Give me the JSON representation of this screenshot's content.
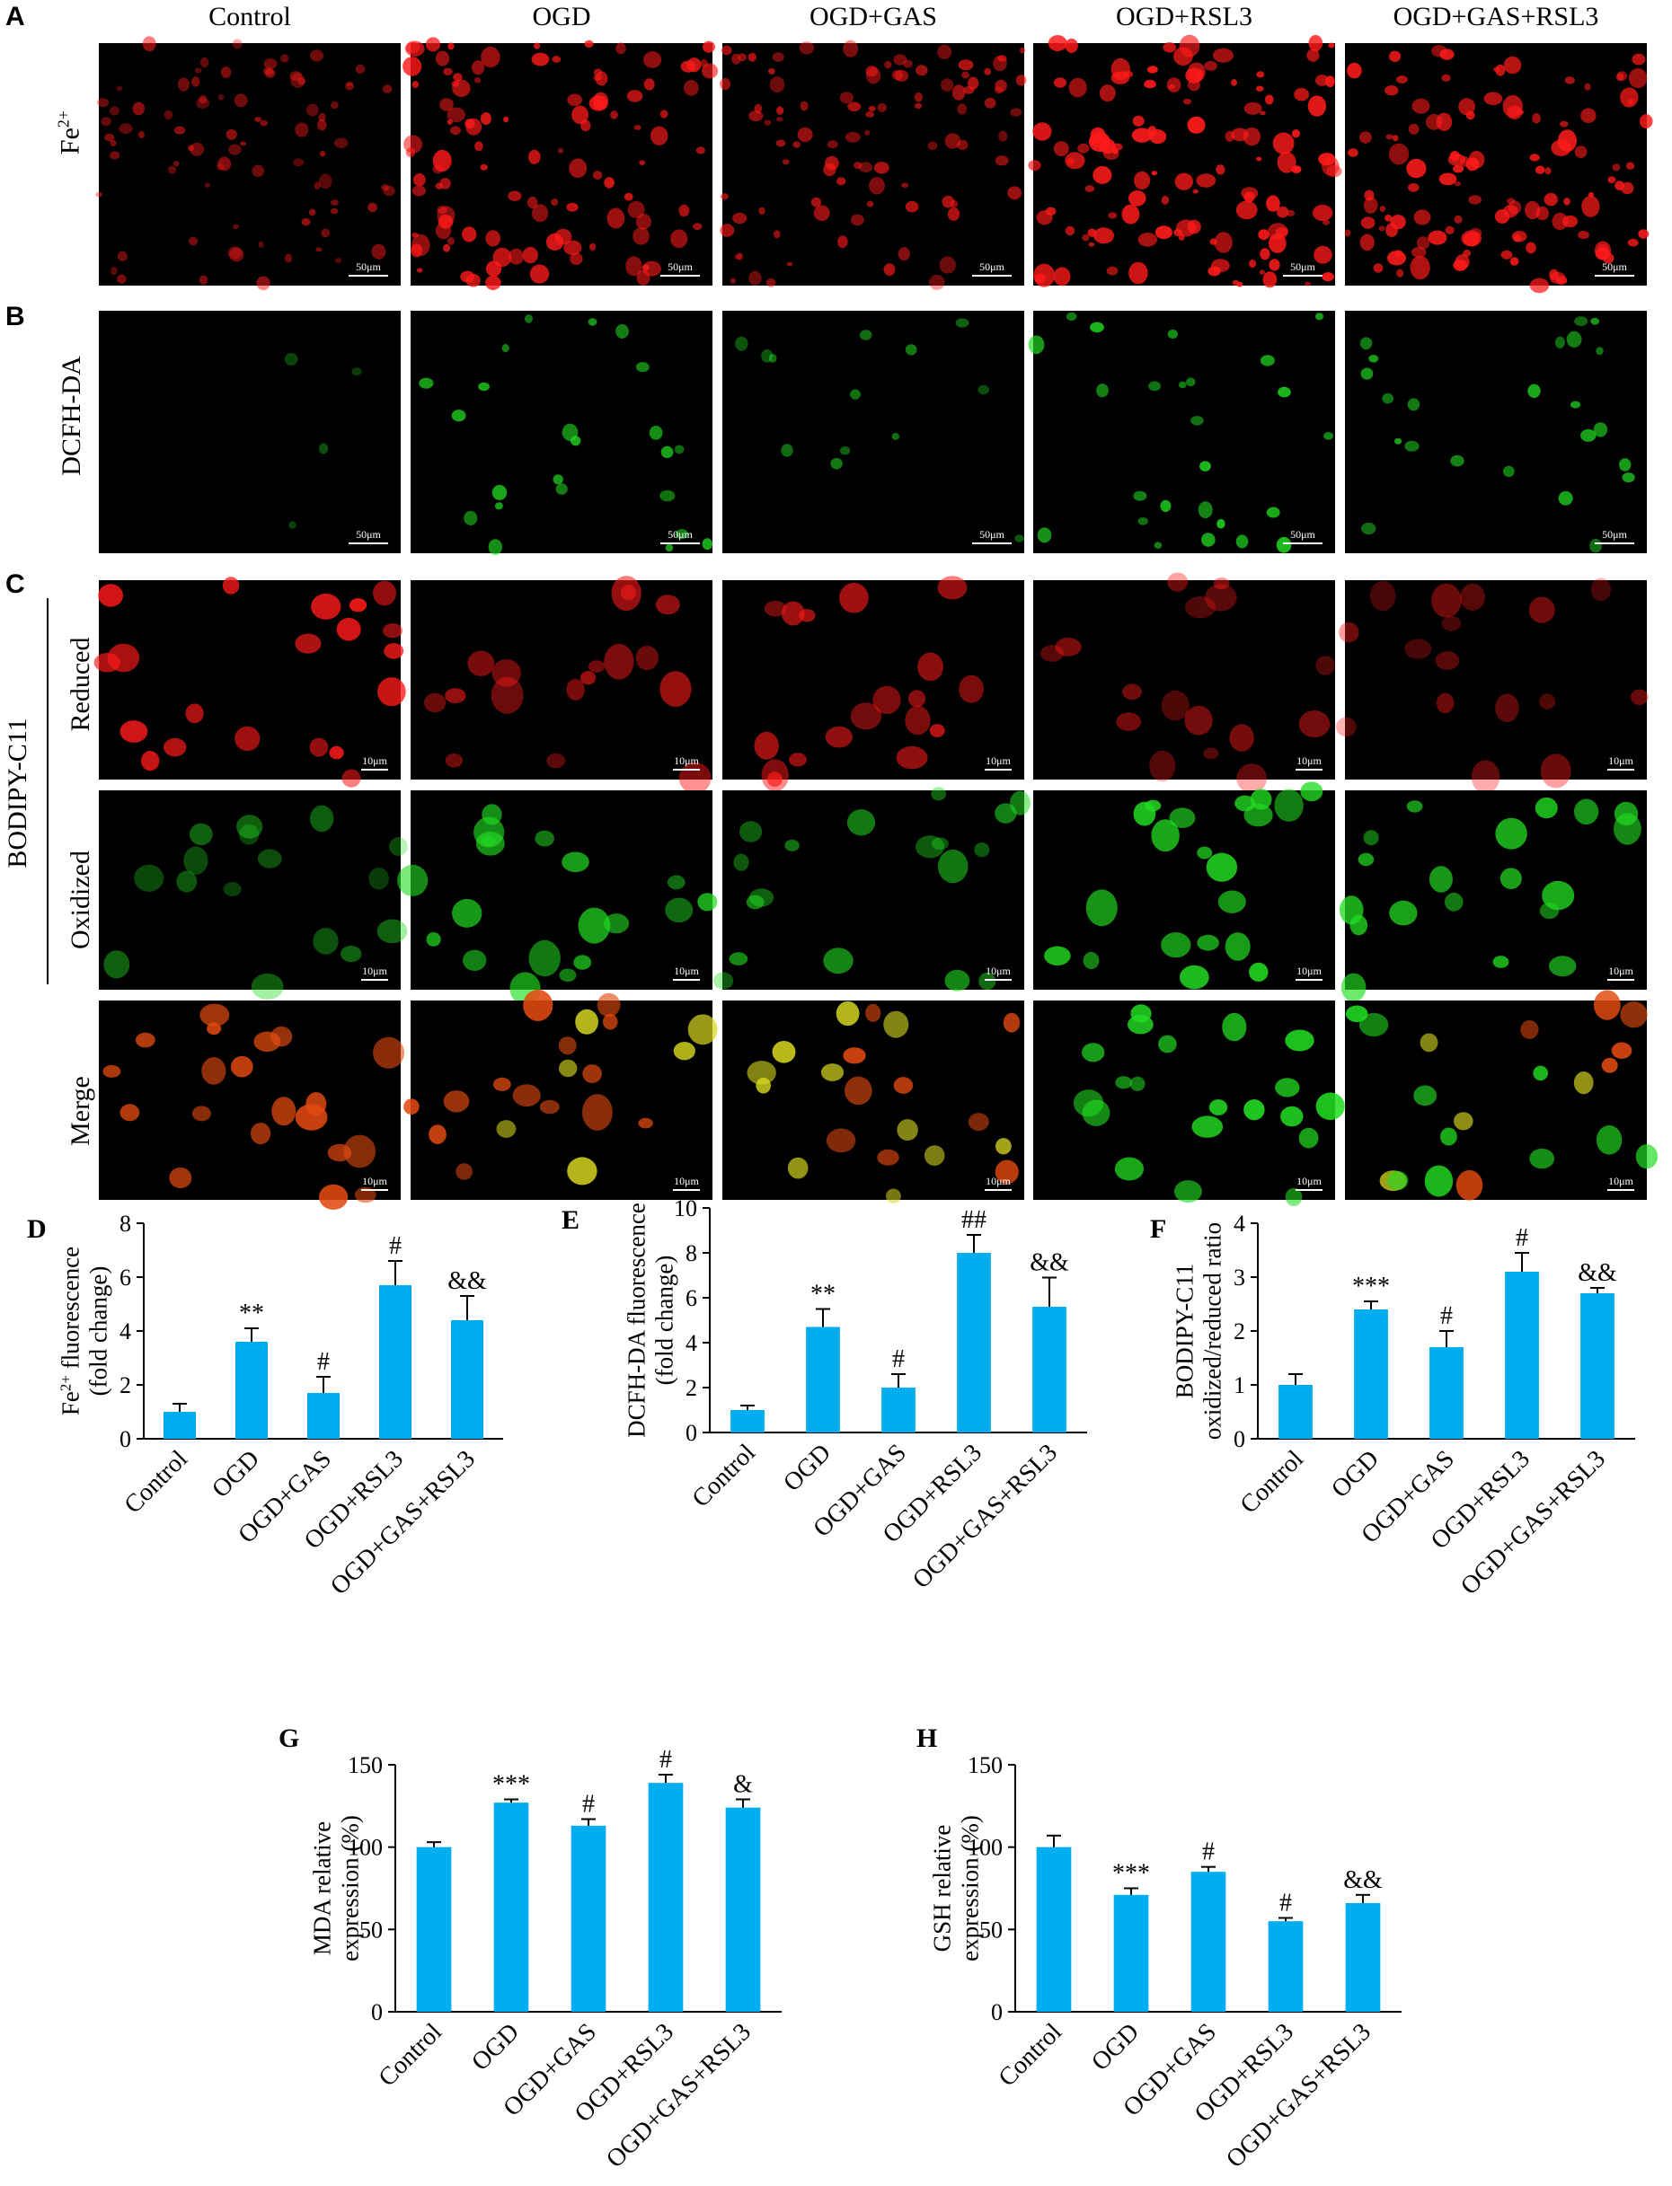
{
  "panel_letters": {
    "A": "A",
    "B": "B",
    "C": "C",
    "D": "D",
    "E": "E",
    "F": "F",
    "G": "G",
    "H": "H"
  },
  "columns": [
    "Control",
    "OGD",
    "OGD+GAS",
    "OGD+RSL3",
    "OGD+GAS+RSL3"
  ],
  "row_labels": {
    "fe": "Fe2+",
    "dcfh": "DCFH-DA",
    "bodipy_group": "BODIPY-C11",
    "reduced": "Reduced",
    "oxidized": "Oxidized",
    "merge": "Merge"
  },
  "scale_labels": {
    "large": "50μm",
    "small": "10μm"
  },
  "colors": {
    "bar": "#00AEEF",
    "red_stain": "#ff1a1a",
    "green_stain": "#22dd22",
    "yellow_stain": "#d8d820",
    "orange_stain": "#e24a10"
  },
  "chart_data": [
    {
      "id": "D",
      "type": "bar",
      "categories": [
        "Control",
        "OGD",
        "OGD+GAS",
        "OGD+RSL3",
        "OGD+GAS+RSL3"
      ],
      "values": [
        1.0,
        3.6,
        1.7,
        5.7,
        4.4
      ],
      "errors": [
        0.3,
        0.5,
        0.6,
        0.9,
        0.9
      ],
      "annotations": [
        "",
        "**",
        "#",
        "#",
        "&&"
      ],
      "ylabel_lines": [
        "Fe2+ fluorescence",
        "(fold change)"
      ],
      "ylim": [
        0,
        8
      ],
      "yticks": [
        0,
        2,
        4,
        6,
        8
      ],
      "xlabel": ""
    },
    {
      "id": "E",
      "type": "bar",
      "categories": [
        "Control",
        "OGD",
        "OGD+GAS",
        "OGD+RSL3",
        "OGD+GAS+RSL3"
      ],
      "values": [
        1.0,
        4.7,
        2.0,
        8.0,
        5.6
      ],
      "errors": [
        0.2,
        0.8,
        0.6,
        0.8,
        1.3
      ],
      "annotations": [
        "",
        "**",
        "#",
        "##",
        "&&"
      ],
      "ylabel_lines": [
        "DCFH-DA fluorescence",
        "(fold change)"
      ],
      "ylim": [
        0,
        10
      ],
      "yticks": [
        0,
        2,
        4,
        6,
        8,
        10
      ],
      "xlabel": ""
    },
    {
      "id": "F",
      "type": "bar",
      "categories": [
        "Control",
        "OGD",
        "OGD+GAS",
        "OGD+RSL3",
        "OGD+GAS+RSL3"
      ],
      "values": [
        1.0,
        2.4,
        1.7,
        3.1,
        2.7
      ],
      "errors": [
        0.2,
        0.15,
        0.3,
        0.35,
        0.1
      ],
      "annotations": [
        "",
        "***",
        "#",
        "#",
        "&&"
      ],
      "ylabel_lines": [
        "BODIPY-C11",
        "oxidized/reduced ratio"
      ],
      "ylim": [
        0,
        4
      ],
      "yticks": [
        0,
        1,
        2,
        3,
        4
      ],
      "xlabel": ""
    },
    {
      "id": "G",
      "type": "bar",
      "categories": [
        "Control",
        "OGD",
        "OGD+GAS",
        "OGD+RSL3",
        "OGD+GAS+RSL3"
      ],
      "values": [
        100,
        127,
        113,
        139,
        124
      ],
      "errors": [
        3,
        2,
        4,
        5,
        5
      ],
      "annotations": [
        "",
        "***",
        "#",
        "#",
        "&"
      ],
      "ylabel_lines": [
        "MDA relative",
        "expression (%)"
      ],
      "ylim": [
        0,
        150
      ],
      "yticks": [
        0,
        50,
        100,
        150
      ],
      "xlabel": ""
    },
    {
      "id": "H",
      "type": "bar",
      "categories": [
        "Control",
        "OGD",
        "OGD+GAS",
        "OGD+RSL3",
        "OGD+GAS+RSL3"
      ],
      "values": [
        100,
        71,
        85,
        55,
        66
      ],
      "errors": [
        7,
        4,
        3,
        2,
        5
      ],
      "annotations": [
        "",
        "***",
        "#",
        "#",
        "&&"
      ],
      "ylabel_lines": [
        "GSH relative",
        "expression (%)"
      ],
      "ylim": [
        0,
        150
      ],
      "yticks": [
        0,
        50,
        100,
        150
      ],
      "xlabel": ""
    }
  ]
}
